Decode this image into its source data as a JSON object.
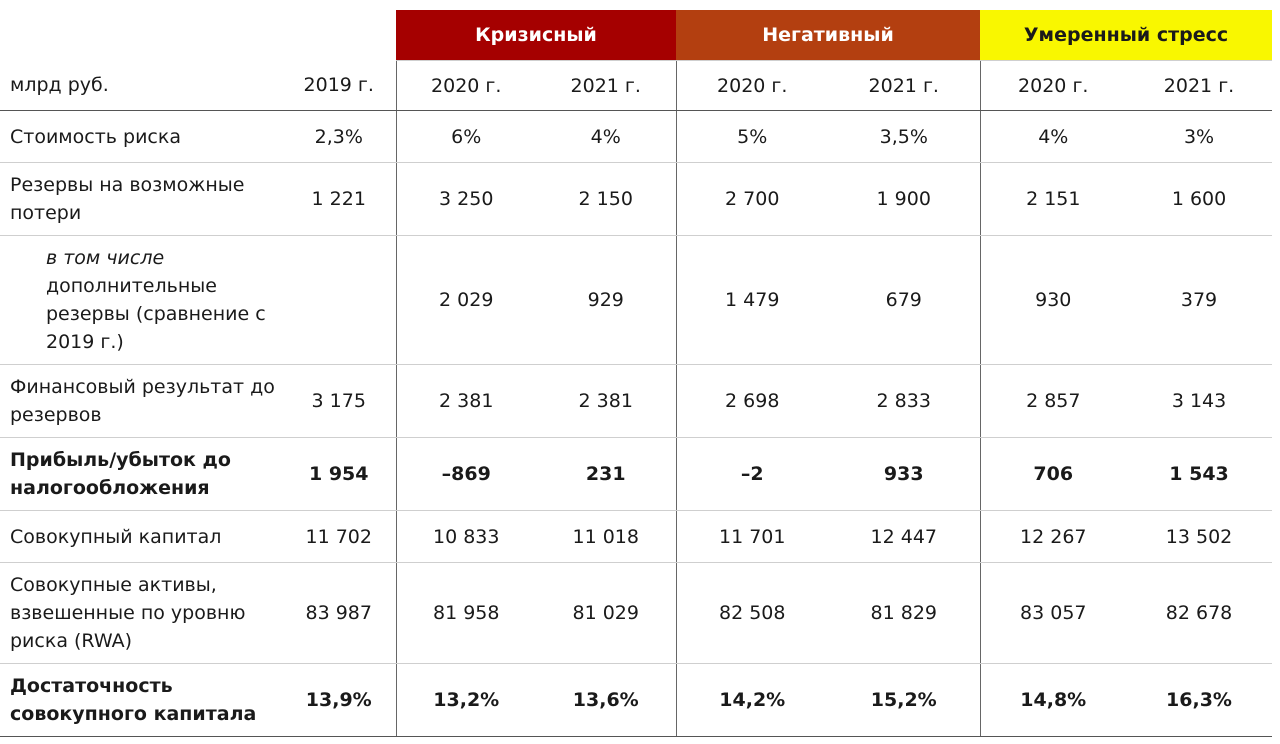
{
  "header": {
    "unit_label": "млрд руб.",
    "base_year": "2019 г.",
    "scenarios": [
      {
        "name": "Кризисный",
        "color": "#a50000",
        "years": [
          "2020 г.",
          "2021 г."
        ]
      },
      {
        "name": "Негативный",
        "color": "#b33f10",
        "years": [
          "2020 г.",
          "2021 г."
        ]
      },
      {
        "name": "Умеренный стресс",
        "color": "#f9f700",
        "years": [
          "2020 г.",
          "2021 г."
        ]
      }
    ]
  },
  "rows": [
    {
      "label": "Стоимость риска",
      "values": [
        "2,3%",
        "6%",
        "4%",
        "5%",
        "3,5%",
        "4%",
        "3%"
      ]
    },
    {
      "label": "Резервы на возможные потери",
      "values": [
        "1 221",
        "3 250",
        "2 150",
        "2 700",
        "1 900",
        "2 151",
        "1 600"
      ]
    },
    {
      "label_italic": "в том числе",
      "label": "дополнительные резервы (сравнение с 2019 г.)",
      "values": [
        "",
        "2 029",
        "929",
        "1 479",
        "679",
        "930",
        "379"
      ]
    },
    {
      "label": "Финансовый результат до резервов",
      "values": [
        "3 175",
        "2 381",
        "2 381",
        "2 698",
        "2 833",
        "2 857",
        "3 143"
      ]
    },
    {
      "label": "Прибыль/убыток до налогообложения",
      "values": [
        "1 954",
        "–869",
        "231",
        "–2",
        "933",
        "706",
        "1 543"
      ]
    },
    {
      "label": "Совокупный капитал",
      "values": [
        "11 702",
        "10 833",
        "11 018",
        "11 701",
        "12 447",
        "12 267",
        "13 502"
      ]
    },
    {
      "label": "Совокупные активы, взвешенные по уровню риска (RWA)",
      "values": [
        "83 987",
        "81 958",
        "81 029",
        "82 508",
        "81 829",
        "83 057",
        "82 678"
      ]
    },
    {
      "label": "Достаточность совокупного капитала",
      "values": [
        "13,9%",
        "13,2%",
        "13,6%",
        "14,2%",
        "15,2%",
        "14,8%",
        "16,3%"
      ]
    }
  ]
}
